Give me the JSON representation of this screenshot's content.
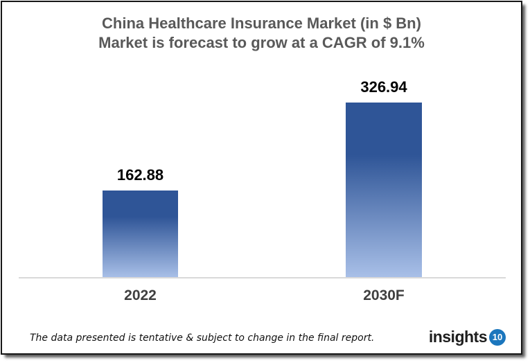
{
  "chart_data": {
    "type": "bar",
    "title": "China Healthcare Insurance Market (in $ Bn)",
    "subtitle": "Market is forecast to grow at a CAGR of 9.1%",
    "categories": [
      "2022",
      "2030F"
    ],
    "values": [
      162.88,
      326.94
    ],
    "value_labels": [
      "162.88",
      "326.94"
    ],
    "xlabel": "",
    "ylabel": "",
    "grid": false,
    "legend_visible": false,
    "bar_gradient_top": "#2F5597",
    "bar_gradient_bottom": "#A9C0E8",
    "axis_line_color": "#D9D9D9",
    "title_color": "#595959",
    "value_label_color": "#000000",
    "category_label_color": "#3F3F3F"
  },
  "footer": {
    "note": "The data presented is tentative & subject to change in the final report.",
    "logo_text": "insights",
    "logo_badge": "10",
    "logo_badge_color": "#1B76BD"
  }
}
